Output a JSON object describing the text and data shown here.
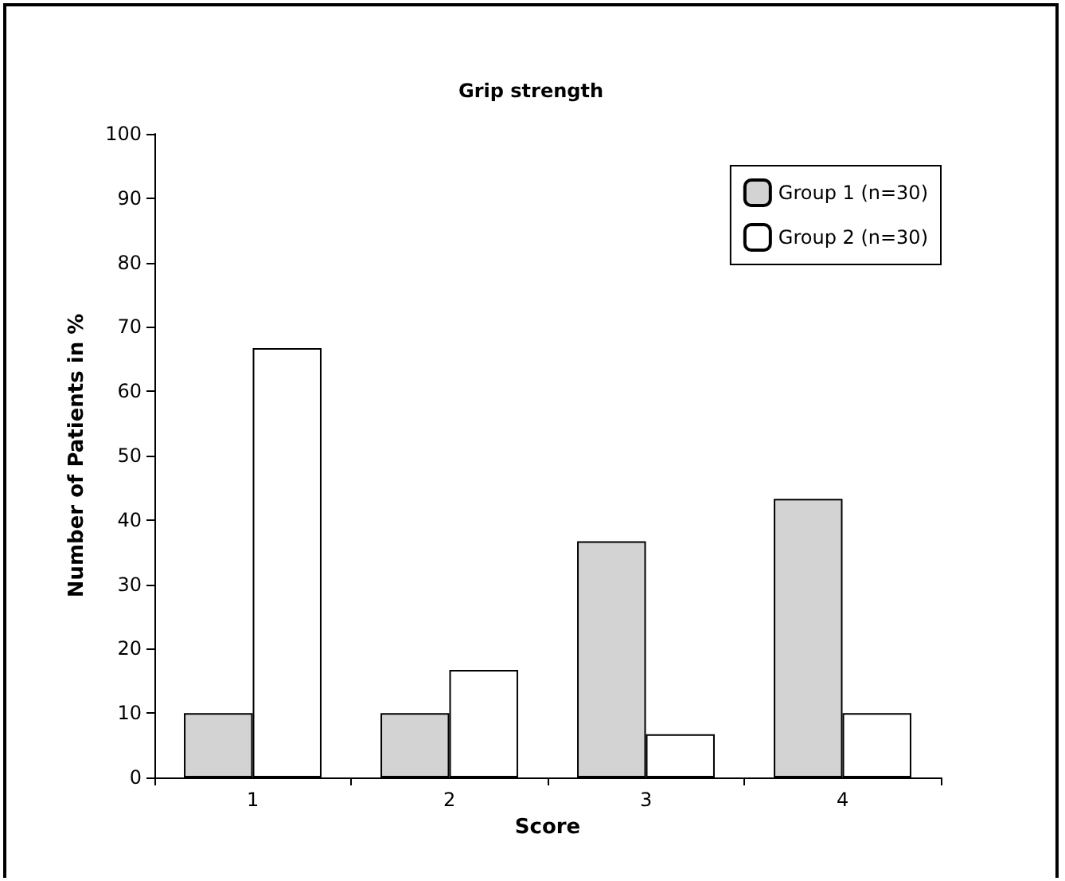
{
  "chart_data": {
    "type": "bar",
    "title": "Grip strength",
    "xlabel": "Score",
    "ylabel": "Number of Patients in %",
    "categories": [
      "1",
      "2",
      "3",
      "4"
    ],
    "series": [
      {
        "name": "Group 1 (n=30)",
        "color": "#d3d3d3",
        "values": [
          10,
          10,
          36.7,
          43.3
        ]
      },
      {
        "name": "Group 2 (n=30)",
        "color": "#ffffff",
        "values": [
          66.7,
          16.7,
          6.7,
          10
        ]
      }
    ],
    "ylim": [
      0,
      100
    ],
    "yticks": [
      0,
      10,
      20,
      30,
      40,
      50,
      60,
      70,
      80,
      90,
      100
    ],
    "grid": false,
    "legend": "top right"
  }
}
